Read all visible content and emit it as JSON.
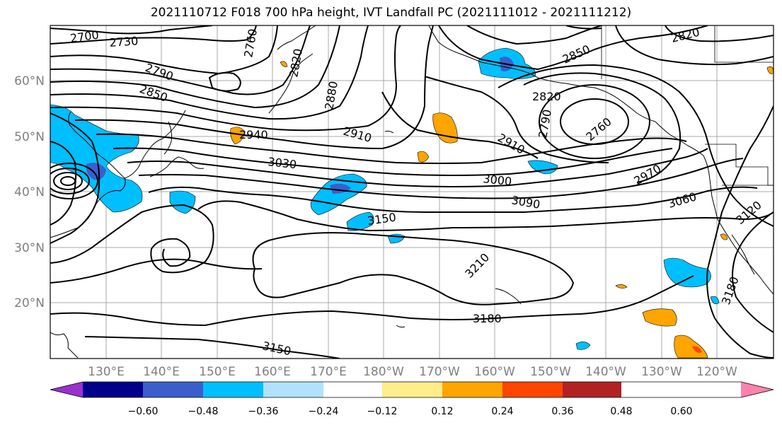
{
  "title": "2021110712 F018 700 hPa height, IVT Landfall PC (2021111012 - 2021111212)",
  "lat_labels": [
    "60°N",
    "50°N",
    "40°N",
    "30°N",
    "20°N"
  ],
  "lon_labels": [
    "130°E",
    "140°E",
    "150°E",
    "160°E",
    "170°E",
    "180°W",
    "170°W",
    "160°W",
    "150°W",
    "140°W",
    "130°W",
    "120°W"
  ],
  "contour_labels": [
    "2700",
    "2730",
    "2760",
    "2820",
    "2790",
    "2850",
    "2880",
    "2940",
    "2910",
    "3030",
    "2820",
    "2850",
    "2790",
    "2760",
    "2820",
    "2910",
    "2970",
    "3000",
    "3090",
    "3060",
    "3150",
    "3120",
    "3210",
    "3180",
    "3180",
    "3150"
  ],
  "colorbar": {
    "ticks": [
      "−0.60",
      "−0.48",
      "−0.36",
      "−0.24",
      "−0.12",
      "0.12",
      "0.24",
      "0.36",
      "0.48",
      "0.60"
    ],
    "colors": [
      "#9932cc",
      "#00008b",
      "#3a5fcd",
      "#00bfff",
      "#b0e2ff",
      "#ffffff",
      "#ffec8b",
      "#ffa500",
      "#ff4500",
      "#b22222",
      "#ff82ab"
    ]
  }
}
